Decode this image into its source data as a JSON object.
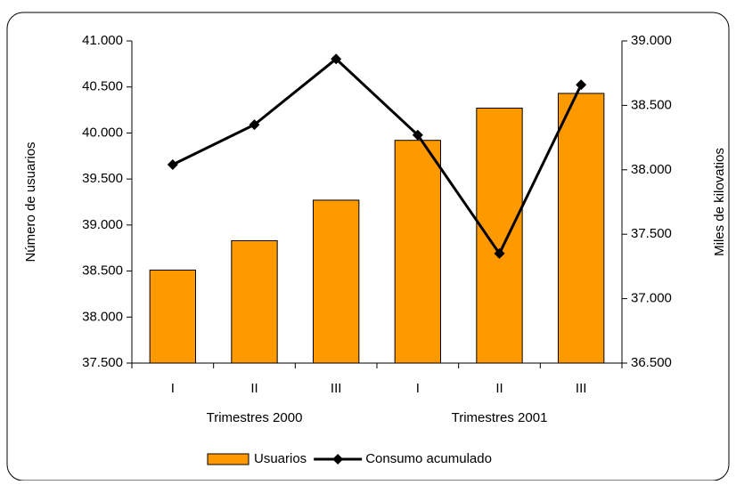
{
  "chart_data": {
    "type": "bar-line",
    "categories": [
      "I",
      "II",
      "III",
      "I",
      "II",
      "III"
    ],
    "groups": [
      "Trimestres 2000",
      "Trimestres 2001"
    ],
    "ylabel": "Número de usuarios",
    "y2label": "Miles de kilovatios",
    "ylim": [
      37500,
      41000
    ],
    "yticks": [
      {
        "value": 37500,
        "label": "37.500"
      },
      {
        "value": 38000,
        "label": "38.000"
      },
      {
        "value": 38500,
        "label": "38.500"
      },
      {
        "value": 39000,
        "label": "39.000"
      },
      {
        "value": 39500,
        "label": "39.500"
      },
      {
        "value": 40000,
        "label": "40.000"
      },
      {
        "value": 40500,
        "label": "40.500"
      },
      {
        "value": 41000,
        "label": "41.000"
      }
    ],
    "y2lim": [
      36500,
      39000
    ],
    "y2ticks": [
      {
        "value": 36500,
        "label": "36.500"
      },
      {
        "value": 37000,
        "label": "37.000"
      },
      {
        "value": 37500,
        "label": "37.500"
      },
      {
        "value": 38000,
        "label": "38.000"
      },
      {
        "value": 38500,
        "label": "38.500"
      },
      {
        "value": 39000,
        "label": "39.000"
      }
    ],
    "series": [
      {
        "name": "Usuarios",
        "type": "bar",
        "color": "#ff9900",
        "values": [
          38510,
          38830,
          39270,
          39920,
          40270,
          40430
        ]
      },
      {
        "name": "Consumo acumulado",
        "type": "line",
        "axis": "y2",
        "color": "#000000",
        "values": [
          38040,
          38350,
          38860,
          38270,
          37350,
          38660
        ]
      }
    ]
  }
}
